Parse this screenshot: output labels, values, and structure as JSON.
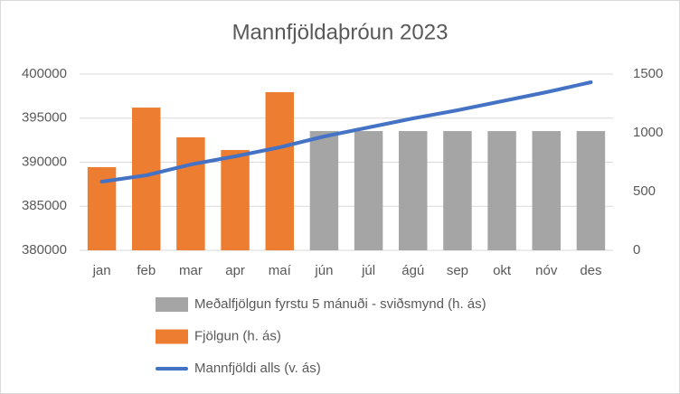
{
  "chart_data": {
    "type": "combo",
    "title": "Mannfjöldaþróun 2023",
    "categories": [
      "jan",
      "feb",
      "mar",
      "apr",
      "maí",
      "jún",
      "júl",
      "ágú",
      "sep",
      "okt",
      "nóv",
      "des"
    ],
    "series": [
      {
        "name": "Meðalfjölgun fyrstu 5 mánuði - sviðsmynd (h. ás)",
        "type": "bar",
        "axis": "y2",
        "color": "#a5a5a5",
        "values": [
          null,
          null,
          null,
          null,
          null,
          1015,
          1015,
          1015,
          1015,
          1015,
          1015,
          1015
        ]
      },
      {
        "name": "Fjölgun (h. ás)",
        "type": "bar",
        "axis": "y2",
        "color": "#ed7d31",
        "values": [
          708,
          1215,
          962,
          854,
          1346,
          null,
          null,
          null,
          null,
          null,
          null,
          null
        ]
      },
      {
        "name": "Mannfjöldi alls (v. ás)",
        "type": "line",
        "axis": "y",
        "color": "#4472c4",
        "values": [
          387795,
          388513,
          389743,
          390667,
          391692,
          392923,
          393949,
          394974,
          395897,
          396923,
          397949,
          399077
        ]
      }
    ],
    "ylim": [
      380000,
      400000
    ],
    "yticks": [
      380000,
      385000,
      390000,
      395000,
      400000
    ],
    "y2lim": [
      0,
      1500
    ],
    "y2ticks": [
      0,
      500,
      1000,
      1500
    ],
    "grid": true
  }
}
